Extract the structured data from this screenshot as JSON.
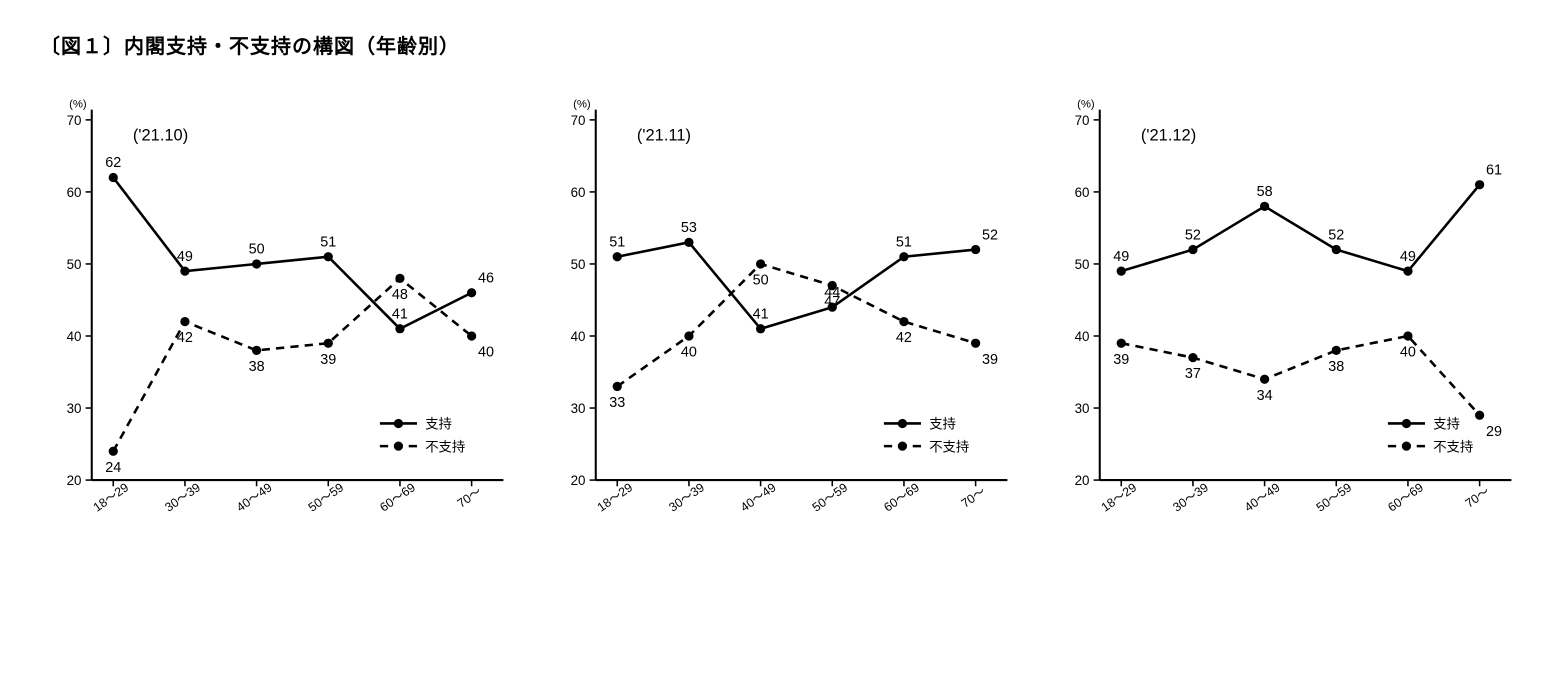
{
  "title": "〔図１〕内閣支持・不支持の構図（年齢別）",
  "unit_label": "(%)",
  "categories": [
    "18～29",
    "30～39",
    "40～49",
    "50～59",
    "60～69",
    "70～"
  ],
  "y_axis": {
    "min": 20,
    "max": 70,
    "ticks": [
      20,
      30,
      40,
      50,
      60,
      70
    ]
  },
  "legend": {
    "support": "支持",
    "oppose": "不支持"
  },
  "styling": {
    "support": {
      "color": "#000000",
      "line_width": 2.5,
      "marker": "circle",
      "marker_size": 4,
      "dash": null
    },
    "oppose": {
      "color": "#000000",
      "line_width": 2.5,
      "marker": "circle",
      "marker_size": 4,
      "dash": "8 6"
    },
    "background": "#ffffff",
    "axis_color": "#000000",
    "font_family": "Hiragino Sans, Meiryo, sans-serif",
    "title_fontsize": 20,
    "subtitle_fontsize": 16,
    "label_fontsize": 14,
    "tick_fontsize": 13
  },
  "panels": [
    {
      "subtitle": "('21.10)",
      "support": [
        62,
        49,
        50,
        51,
        41,
        46
      ],
      "oppose": [
        24,
        42,
        38,
        39,
        48,
        40
      ]
    },
    {
      "subtitle": "('21.11)",
      "support": [
        51,
        53,
        41,
        44,
        51,
        52
      ],
      "oppose": [
        33,
        40,
        50,
        47,
        42,
        39
      ]
    },
    {
      "subtitle": "('21.12)",
      "support": [
        49,
        52,
        58,
        52,
        49,
        61
      ],
      "oppose": [
        39,
        37,
        34,
        38,
        40,
        29
      ]
    }
  ]
}
